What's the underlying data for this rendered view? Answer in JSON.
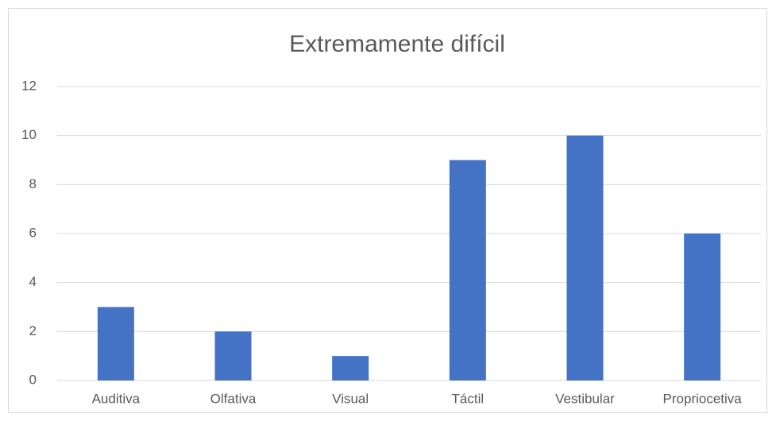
{
  "chart_data": {
    "type": "bar",
    "title": "Extremamente difícil",
    "categories": [
      "Auditiva",
      "Olfativa",
      "Visual",
      "Táctil",
      "Vestibular",
      "Propriocetiva"
    ],
    "values": [
      3,
      2,
      1,
      9,
      10,
      6
    ],
    "color": "#4472c4",
    "ylim": [
      0,
      12
    ],
    "yticks": [
      0,
      2,
      4,
      6,
      8,
      10,
      12
    ],
    "grid": true
  }
}
